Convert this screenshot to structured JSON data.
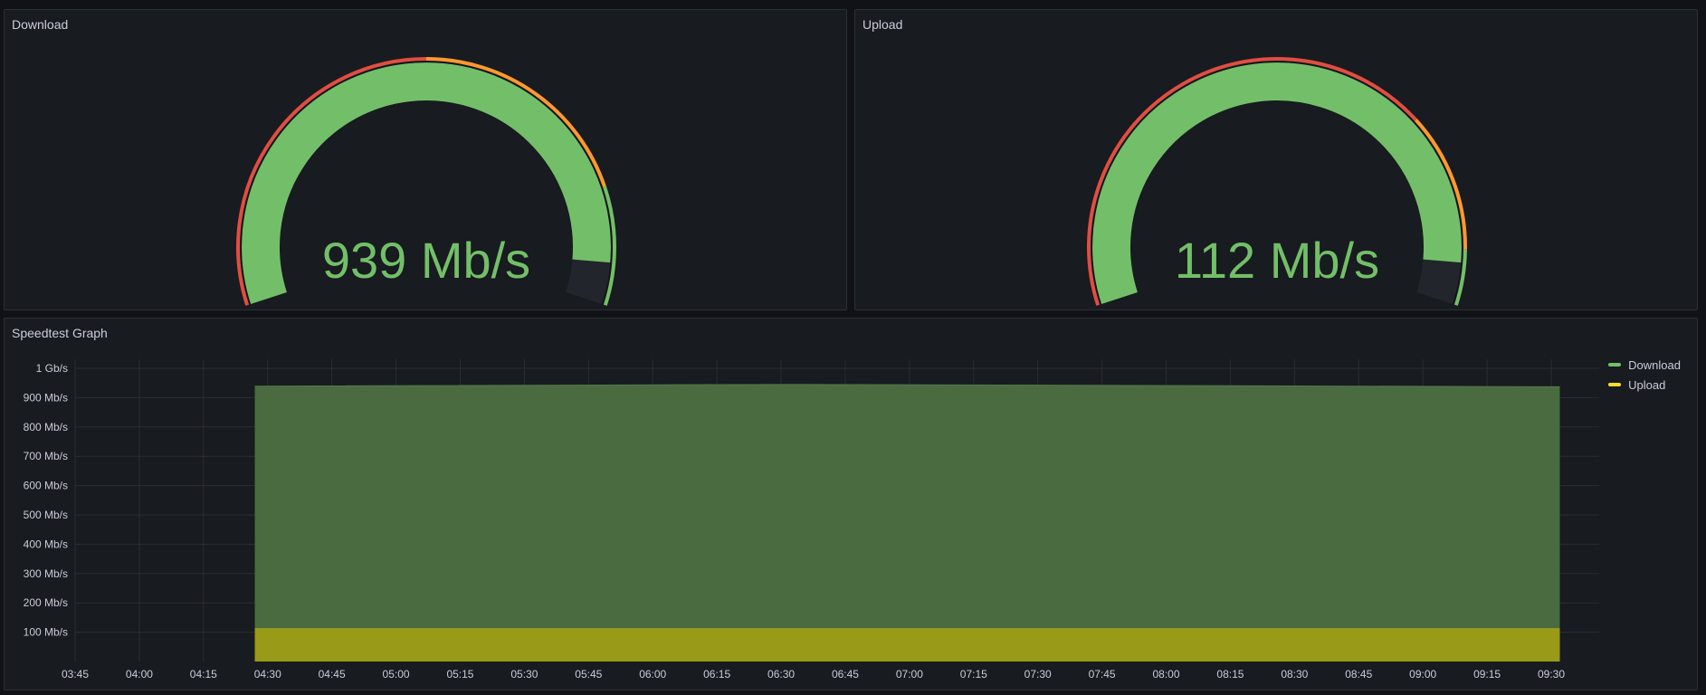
{
  "download_panel": {
    "title": "Download",
    "value_text": "939 Mb/s",
    "fill_fraction": 0.939,
    "threshold_colors": [
      "#e24d42",
      "#ff9830",
      "#73bf69"
    ],
    "value_color": "#73bf69"
  },
  "upload_panel": {
    "title": "Upload",
    "value_text": "112 Mb/s",
    "fill_fraction": 0.939,
    "threshold_colors": [
      "#e24d42",
      "#ff9830",
      "#73bf69"
    ],
    "value_color": "#73bf69"
  },
  "graph_panel": {
    "title": "Speedtest Graph",
    "legend": [
      {
        "name": "Download",
        "color": "#73bf69"
      },
      {
        "name": "Upload",
        "color": "#fade2a"
      }
    ]
  },
  "chart_data": {
    "type": "area",
    "title": "Speedtest Graph",
    "x_ticks": [
      "03:45",
      "04:00",
      "04:15",
      "04:30",
      "04:45",
      "05:00",
      "05:15",
      "05:30",
      "05:45",
      "06:00",
      "06:15",
      "06:30",
      "06:45",
      "07:00",
      "07:15",
      "07:30",
      "07:45",
      "08:00",
      "08:15",
      "08:30",
      "08:45",
      "09:00",
      "09:15",
      "09:30"
    ],
    "y_ticks": [
      "100 Mb/s",
      "200 Mb/s",
      "300 Mb/s",
      "400 Mb/s",
      "500 Mb/s",
      "600 Mb/s",
      "700 Mb/s",
      "800 Mb/s",
      "900 Mb/s",
      "1 Gb/s"
    ],
    "ylim": [
      0,
      1000
    ],
    "x_range": [
      "03:45",
      "09:30"
    ],
    "grid": true,
    "legend_position": "top-right",
    "x": [
      "04:27",
      "06:30",
      "09:32"
    ],
    "series": [
      {
        "name": "Download",
        "color": "#73bf69",
        "values": [
          939,
          945,
          937
        ]
      },
      {
        "name": "Upload",
        "color": "#fade2a",
        "values": [
          112,
          112,
          112
        ]
      }
    ]
  }
}
